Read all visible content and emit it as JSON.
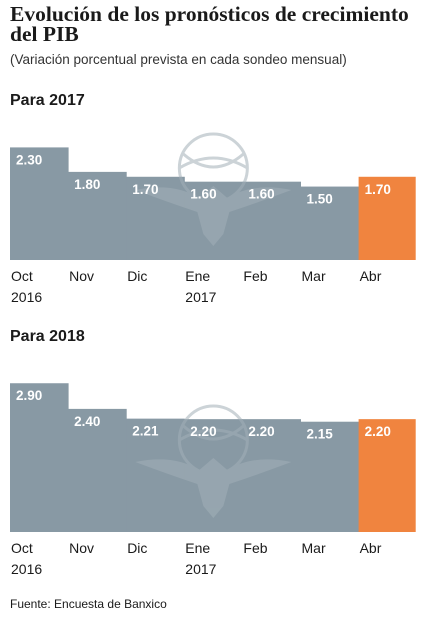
{
  "title": "Evolución de los pronósticos de crecimiento del PIB",
  "subtitle": "(Variación porcentual prevista en cada sondeo mensual)",
  "source": "Fuente: Encuesta de Banxico",
  "colors": {
    "bar": "#8899a4",
    "highlight": "#f0843f",
    "watermark": "#a3b0b8"
  },
  "chart_data": [
    {
      "type": "bar",
      "title": "Para 2017",
      "categories": [
        [
          "Oct",
          "2016"
        ],
        [
          "Nov"
        ],
        [
          "Dic"
        ],
        [
          "Ene",
          "2017"
        ],
        [
          "Feb"
        ],
        [
          "Mar"
        ],
        [
          "Abr"
        ]
      ],
      "values": [
        2.3,
        1.8,
        1.7,
        1.6,
        1.6,
        1.5,
        1.7
      ],
      "labels": [
        "2.30",
        "1.80",
        "1.70",
        "1.60",
        "1.60",
        "1.50",
        "1.70"
      ],
      "highlight_index": 6,
      "ylim": [
        0,
        2.9
      ],
      "xlabel": "",
      "ylabel": "",
      "grid": false,
      "legend": "none"
    },
    {
      "type": "bar",
      "title": "Para 2018",
      "categories": [
        [
          "Oct",
          "2016"
        ],
        [
          "Nov"
        ],
        [
          "Dic"
        ],
        [
          "Ene",
          "2017"
        ],
        [
          "Feb"
        ],
        [
          "Mar"
        ],
        [
          "Abr"
        ]
      ],
      "values": [
        2.9,
        2.4,
        2.21,
        2.2,
        2.2,
        2.15,
        2.2
      ],
      "labels": [
        "2.90",
        "2.40",
        "2.21",
        "2.20",
        "2.20",
        "2.15",
        "2.20"
      ],
      "highlight_index": 6,
      "ylim": [
        0,
        3.5
      ],
      "xlabel": "",
      "ylabel": "",
      "grid": false,
      "legend": "none"
    }
  ]
}
